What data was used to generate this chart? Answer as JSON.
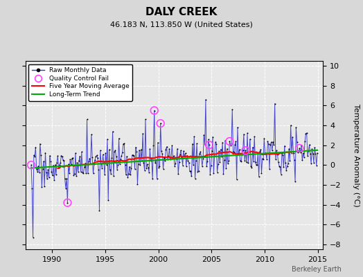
{
  "title": "DALY CREEK",
  "subtitle": "46.183 N, 113.850 W (United States)",
  "ylabel": "Temperature Anomaly (°C)",
  "watermark": "Berkeley Earth",
  "xlim": [
    1987.5,
    2015.5
  ],
  "ylim": [
    -8.5,
    10.5
  ],
  "yticks": [
    -8,
    -6,
    -4,
    -2,
    0,
    2,
    4,
    6,
    8,
    10
  ],
  "xticks": [
    1990,
    1995,
    2000,
    2005,
    2010,
    2015
  ],
  "bg_color": "#d8d8d8",
  "plot_bg_color": "#e8e8e8",
  "raw_color": "#3333cc",
  "raw_lw": 0.7,
  "dot_color": "black",
  "dot_size": 2,
  "ma_color": "red",
  "ma_lw": 1.5,
  "trend_color": "#00aa00",
  "trend_lw": 1.5,
  "qc_color": "#ff44ff",
  "qc_size": 60,
  "title_fontsize": 11,
  "subtitle_fontsize": 8,
  "tick_fontsize": 8,
  "ylabel_fontsize": 8
}
